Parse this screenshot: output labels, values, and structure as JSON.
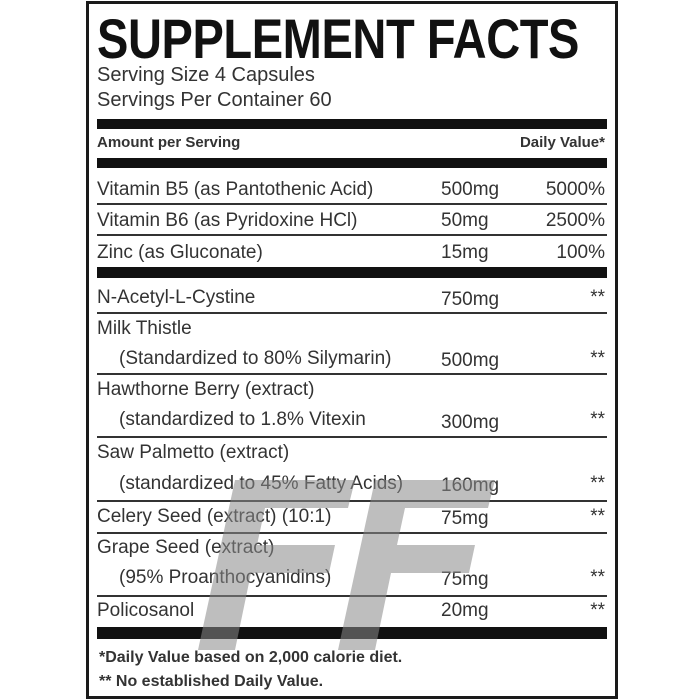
{
  "title": "SUPPLEMENT FACTS",
  "serving_size": "Serving Size 4 Capsules",
  "servings_per_container": "Servings Per Container 60",
  "header": {
    "amount": "Amount per Serving",
    "daily_value": "Daily Value*"
  },
  "vitamins": [
    {
      "name": "Vitamin B5 (as Pantothenic Acid)",
      "amount": "500mg",
      "dv": "5000%"
    },
    {
      "name": "Vitamin B6 (as Pyridoxine HCl)",
      "amount": "50mg",
      "dv": "2500%"
    },
    {
      "name": "Zinc (as Gluconate)",
      "amount": "15mg",
      "dv": "100%"
    }
  ],
  "ingredients": [
    {
      "name": "N-Acetyl-L-Cystine",
      "amount": "750mg",
      "dv": "**"
    },
    {
      "name": "Milk Thistle",
      "detail": "(Standardized to 80% Silymarin)",
      "amount": "500mg",
      "dv": "**"
    },
    {
      "name": "Hawthorne Berry (extract)",
      "detail": "(standardized to 1.8% Vitexin",
      "amount": "300mg",
      "dv": "**"
    },
    {
      "name": "Saw Palmetto (extract)",
      "detail": "(standardized to 45% Fatty Acids)",
      "amount": "160mg",
      "dv": "**"
    },
    {
      "name": "Celery Seed (extract) (10:1)",
      "amount": "75mg",
      "dv": "**"
    },
    {
      "name": "Grape Seed (extract)",
      "detail": "(95% Proanthocyanidins)",
      "amount": "75mg",
      "dv": "**"
    },
    {
      "name": "Policosanol",
      "amount": "20mg",
      "dv": "**"
    }
  ],
  "footnotes": [
    "*Daily Value based on 2,000 calorie diet.",
    "** No established Daily Value."
  ],
  "watermark": "FF"
}
